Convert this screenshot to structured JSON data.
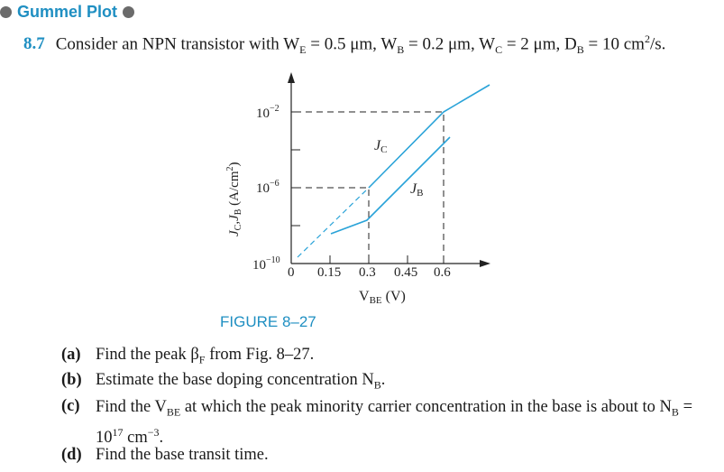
{
  "header": {
    "title": "Gummel Plot"
  },
  "problem": {
    "number": "8.7",
    "statement": "Consider an NPN transistor with W",
    "WE": "E",
    "WE_val": " = 0.5 μm, W",
    "WB": "B",
    "WB_val": " = 0.2 μm, W",
    "WC": "C",
    "WC_val": " = 2 μm, D",
    "DB": "B",
    "DB_val": " = 10 cm",
    "DB_exp": "2",
    "DB_tail": "/s."
  },
  "figure": {
    "caption": "FIGURE 8–27",
    "y_axis_label": "J",
    "y_axis_label_C": "C",
    "y_axis_label_mid": ",J",
    "y_axis_label_B": "B",
    "y_axis_label_tail": " (A/cm",
    "y_axis_label_exp": "2",
    "y_axis_label_end": ")",
    "x_axis_label": "V",
    "x_axis_label_sub": "BE",
    "x_axis_label_tail": " (V)",
    "y_ticks": [
      {
        "base": "10",
        "exp": "−2"
      },
      {
        "base": "10",
        "exp": "−6"
      },
      {
        "base": "10",
        "exp": "−10"
      }
    ],
    "x_ticks": [
      "0",
      "0.15",
      "0.3",
      "0.45",
      "0.6"
    ],
    "curve_label_jc": "J",
    "curve_label_jc_sub": "C",
    "curve_label_jb": "J",
    "curve_label_jb_sub": "B",
    "line_color": "#2aa3d8"
  },
  "questions": {
    "a_label": "(a)",
    "a_text": "Find the peak β",
    "a_sub": "F",
    "a_tail": " from Fig. 8–27.",
    "b_label": "(b)",
    "b_text": "Estimate the base doping concentration N",
    "b_sub": "B",
    "b_tail": ".",
    "c_label": "(c)",
    "c_text": "Find the V",
    "c_sub": "BE",
    "c_mid": " at which the peak minority carrier concentration in the base is about to N",
    "c_sub2": "B",
    "c_eq": " = 10",
    "c_exp": "17",
    "c_unit": " cm",
    "c_unit_exp": "−3",
    "c_tail": ".",
    "d_label": "(d)",
    "d_text": "Find the base transit time."
  }
}
